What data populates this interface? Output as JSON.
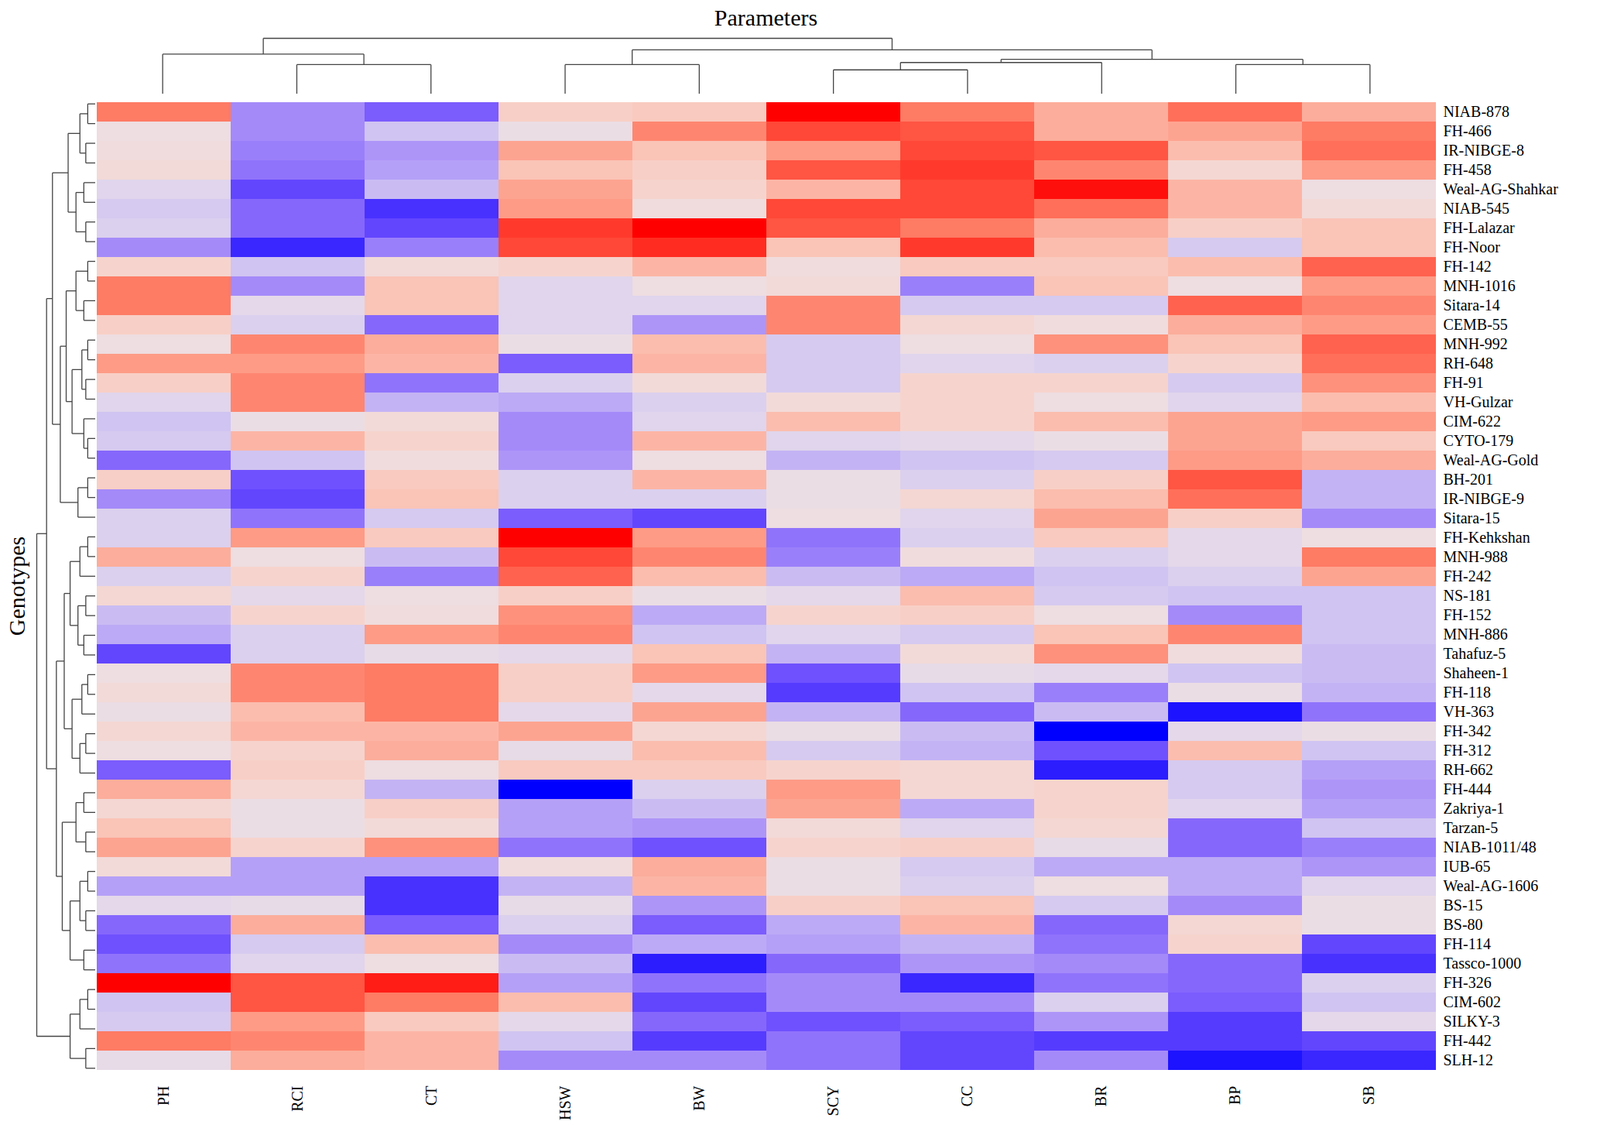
{
  "chart_data": {
    "type": "heatmap",
    "x_label": "Parameters",
    "y_label": "Genotypes",
    "columns": [
      "PH",
      "RCI",
      "CT",
      "HSW",
      "BW",
      "SCY",
      "CC",
      "BR",
      "BP",
      "SB"
    ],
    "rows": [
      "NIAB-878",
      "FH-466",
      "IR-NIBGE-8",
      "FH-458",
      "Weal-AG-Shahkar",
      "NIAB-545",
      "FH-Lalazar",
      "FH-Noor",
      "FH-142",
      "MNH-1016",
      "Sitara-14",
      "CEMB-55",
      "MNH-992",
      "RH-648",
      "FH-91",
      "VH-Gulzar",
      "CIM-622",
      "CYTO-179",
      "Weal-AG-Gold",
      "BH-201",
      "IR-NIBGE-9",
      "Sitara-15",
      "FH-Kehkshan",
      "MNH-988",
      "FH-242",
      "NS-181",
      "FH-152",
      "MNH-886",
      "Tahafuz-5",
      "Shaheen-1",
      "FH-118",
      "VH-363",
      "FH-342",
      "FH-312",
      "RH-662",
      "FH-444",
      "Zakriya-1",
      "Tarzan-5",
      "NIAB-1011/48",
      "IUB-65",
      "Weal-AG-1606",
      "BS-15",
      "BS-80",
      "FH-114",
      "Tassco-1000",
      "FH-326",
      "CIM-602",
      "SILKY-3",
      "FH-442",
      "SLH-12"
    ],
    "values": [
      [
        1.6,
        -1.2,
        -1.6,
        0.6,
        0.7,
        2.5,
        1.6,
        1.1,
        1.7,
        1.1
      ],
      [
        0.1,
        -1.2,
        -0.6,
        0.0,
        1.5,
        2.0,
        1.9,
        1.1,
        1.2,
        1.6
      ],
      [
        0.2,
        -1.3,
        -1.1,
        1.2,
        0.8,
        1.3,
        2.0,
        1.9,
        0.9,
        1.7
      ],
      [
        0.3,
        -1.4,
        -1.0,
        0.8,
        0.6,
        1.9,
        2.1,
        1.5,
        0.4,
        1.3
      ],
      [
        -0.3,
        -1.8,
        -0.7,
        1.2,
        0.5,
        1.0,
        2.0,
        2.4,
        1.0,
        0.1
      ],
      [
        -0.5,
        -1.5,
        -2.0,
        1.3,
        0.2,
        2.0,
        2.0,
        1.7,
        1.0,
        0.3
      ],
      [
        -0.4,
        -1.5,
        -1.8,
        2.1,
        2.5,
        1.9,
        1.6,
        1.1,
        0.6,
        0.8
      ],
      [
        -1.2,
        -2.1,
        -1.3,
        2.0,
        2.2,
        0.8,
        2.1,
        0.9,
        -0.5,
        0.8
      ],
      [
        0.5,
        -0.6,
        0.3,
        0.5,
        1.0,
        0.2,
        0.7,
        0.7,
        0.9,
        1.8
      ],
      [
        1.6,
        -1.2,
        0.8,
        -0.3,
        0.1,
        0.3,
        -1.3,
        0.8,
        0.1,
        1.3
      ],
      [
        1.6,
        -0.2,
        0.8,
        -0.3,
        -0.3,
        1.5,
        -0.5,
        -0.5,
        1.8,
        1.5
      ],
      [
        0.6,
        -0.4,
        -1.5,
        -0.3,
        -1.1,
        1.5,
        0.4,
        0.2,
        1.1,
        1.3
      ],
      [
        0.1,
        1.5,
        1.1,
        0.0,
        0.9,
        -0.5,
        0.1,
        1.4,
        0.8,
        1.8
      ],
      [
        1.3,
        1.3,
        1.0,
        -1.6,
        1.0,
        -0.5,
        -0.3,
        -0.4,
        0.5,
        1.7
      ],
      [
        0.6,
        1.5,
        -1.4,
        -0.4,
        0.3,
        -0.5,
        0.5,
        0.5,
        -0.5,
        1.4
      ],
      [
        -0.3,
        1.5,
        -0.8,
        -0.9,
        -0.4,
        0.3,
        0.5,
        0.1,
        -0.3,
        0.9
      ],
      [
        -0.6,
        0.0,
        0.3,
        -1.2,
        -0.3,
        0.9,
        0.5,
        0.9,
        1.2,
        1.3
      ],
      [
        -0.5,
        1.0,
        0.5,
        -1.2,
        1.0,
        -0.3,
        -0.2,
        0.0,
        1.2,
        0.7
      ],
      [
        -1.5,
        -0.6,
        0.2,
        -1.1,
        0.1,
        -0.8,
        -0.6,
        -0.5,
        1.3,
        1.1
      ],
      [
        0.6,
        -1.7,
        0.7,
        -0.4,
        1.0,
        0.0,
        -0.4,
        0.6,
        1.9,
        -0.8
      ],
      [
        -1.2,
        -1.8,
        0.8,
        -0.4,
        -0.4,
        0.0,
        0.4,
        0.9,
        1.7,
        -0.8
      ],
      [
        -0.4,
        -1.4,
        -0.5,
        -1.6,
        -1.8,
        0.1,
        -0.3,
        1.2,
        0.6,
        -1.2
      ],
      [
        -0.4,
        1.3,
        0.7,
        2.5,
        1.3,
        -1.4,
        -0.4,
        0.7,
        -0.2,
        0.1
      ],
      [
        1.1,
        0.1,
        -0.7,
        2.0,
        1.5,
        -1.3,
        0.2,
        -0.4,
        -0.2,
        1.6
      ],
      [
        -0.4,
        0.5,
        -1.3,
        1.8,
        0.9,
        -0.7,
        -0.9,
        -0.6,
        -0.4,
        1.2
      ],
      [
        0.4,
        -0.2,
        0.1,
        0.6,
        0.0,
        -0.2,
        0.9,
        -0.5,
        -0.6,
        -0.6
      ],
      [
        -0.7,
        0.5,
        0.2,
        1.4,
        -0.9,
        0.5,
        0.6,
        0.1,
        -1.2,
        -0.6
      ],
      [
        -0.9,
        -0.4,
        1.3,
        1.5,
        -0.6,
        -0.3,
        -0.5,
        0.8,
        1.5,
        -0.6
      ],
      [
        -1.8,
        -0.4,
        -0.1,
        -0.2,
        0.8,
        -0.8,
        0.3,
        1.4,
        0.2,
        -0.7
      ],
      [
        0.1,
        1.5,
        1.6,
        0.6,
        1.3,
        -1.7,
        -0.1,
        -0.2,
        -0.6,
        -0.7
      ],
      [
        0.3,
        1.5,
        1.6,
        0.6,
        -0.2,
        -1.9,
        -0.6,
        -1.3,
        0.0,
        -0.8
      ],
      [
        0.0,
        0.9,
        1.6,
        -0.2,
        1.2,
        -0.8,
        -1.5,
        -0.7,
        -2.3,
        -1.4
      ],
      [
        0.4,
        1.0,
        1.0,
        1.2,
        0.4,
        0.0,
        -0.7,
        -2.5,
        -0.2,
        0.0
      ],
      [
        0.1,
        0.5,
        1.1,
        -0.1,
        0.9,
        -0.5,
        -0.8,
        -1.7,
        0.9,
        -0.6
      ],
      [
        -1.6,
        0.6,
        0.1,
        0.7,
        0.7,
        0.5,
        0.4,
        -2.2,
        -0.5,
        -1.0
      ],
      [
        1.1,
        0.4,
        -0.8,
        -2.5,
        -0.4,
        1.3,
        0.4,
        0.5,
        -0.5,
        -1.1
      ],
      [
        0.4,
        0.0,
        0.6,
        -1.0,
        -0.7,
        1.2,
        -0.9,
        0.5,
        -0.3,
        -1.0
      ],
      [
        0.8,
        0.0,
        0.3,
        -1.0,
        -1.1,
        0.3,
        -0.3,
        0.4,
        -1.5,
        -0.6
      ],
      [
        1.2,
        0.5,
        1.4,
        -1.4,
        -1.7,
        0.5,
        0.6,
        -0.1,
        -1.5,
        -1.3
      ],
      [
        0.3,
        -1.0,
        -1.0,
        0.2,
        1.1,
        0.0,
        -0.5,
        -0.9,
        -0.9,
        -1.1
      ],
      [
        -1.0,
        -1.0,
        -2.0,
        -0.8,
        1.0,
        0.0,
        -0.4,
        0.1,
        -0.9,
        -0.3
      ],
      [
        -0.2,
        -0.1,
        -2.0,
        -0.1,
        -1.1,
        0.6,
        0.8,
        -0.5,
        -1.2,
        0.0
      ],
      [
        -1.5,
        1.1,
        -1.6,
        -0.4,
        -1.6,
        -0.9,
        1.0,
        -1.5,
        0.4,
        0.0
      ],
      [
        -1.7,
        -0.5,
        0.9,
        -1.2,
        -0.9,
        -1.0,
        -0.8,
        -1.4,
        0.5,
        -1.8
      ],
      [
        -1.4,
        -0.3,
        0.1,
        -0.7,
        -2.2,
        -1.5,
        -1.1,
        -1.2,
        -1.5,
        -2.0
      ],
      [
        2.5,
        1.9,
        2.3,
        -1.0,
        -1.4,
        -1.2,
        -2.1,
        -1.4,
        -1.5,
        -0.4
      ],
      [
        -0.6,
        1.9,
        1.6,
        0.9,
        -1.8,
        -1.2,
        -1.2,
        -0.4,
        -1.6,
        -0.6
      ],
      [
        -0.5,
        1.3,
        0.7,
        -0.2,
        -1.5,
        -1.7,
        -1.6,
        -1.1,
        -1.9,
        -0.2
      ],
      [
        1.6,
        1.5,
        1.0,
        -0.6,
        -1.9,
        -1.4,
        -1.8,
        -1.9,
        -1.9,
        -1.8
      ],
      [
        -0.1,
        1.1,
        1.0,
        -1.2,
        -1.2,
        -1.4,
        -1.8,
        -1.2,
        -2.3,
        -2.1
      ]
    ],
    "zlim": [
      -2.5,
      2.5
    ],
    "column_dendrogram": [
      53,
      [
        38,
        "PH",
        [
          28,
          "RCI",
          "CT"
        ]
      ],
      [
        42,
        [
          28,
          "HSW",
          "BW"
        ],
        [
          33,
          [
            30,
            [
              23,
              "SCY",
              "CC"
            ],
            "BR"
          ],
          [
            28,
            "BP",
            "SB"
          ]
        ]
      ]
    ],
    "row_dendrogram": [
      60,
      [
        50,
        [
          44,
          [
            28,
            [
              16,
              [
                8,
                "NIAB-878",
                "FH-466"
              ],
              [
                10,
                "IR-NIBGE-8",
                "FH-458"
              ]
            ],
            [
              20,
              [
                12,
                "Weal-AG-Shahkar",
                "NIAB-545"
              ],
              [
                10,
                "FH-Lalazar",
                "FH-Noor"
              ]
            ]
          ],
          [
            36,
            [
              30,
              [
                20,
                [
                  8,
                  "FH-142",
                  "MNH-1016"
                ],
                [
                  12,
                  "Sitara-14",
                  "CEMB-55"
                ]
              ],
              [
                24,
                [
                  14,
                  [
                    8,
                    "MNH-992",
                    "RH-648"
                  ],
                  [
                    10,
                    "FH-91",
                    "VH-Gulzar"
                  ]
                ],
                [
                  12,
                  "CIM-622",
                  [
                    8,
                    "CYTO-179",
                    "Weal-AG-Gold"
                  ]
                ]
              ]
            ],
            [
              18,
              [
                8,
                "BH-201",
                "IR-NIBGE-9"
              ],
              "Sitara-15"
            ]
          ]
        ],
        [
          40,
          [
            32,
            [
              26,
              [
                16,
                [
                  8,
                  "FH-Kehkshan",
                  "MNH-988"
                ],
                "FH-242"
              ],
              [
                18,
                [
                  10,
                  "NS-181",
                  "FH-152"
                ],
                [
                  12,
                  "MNH-886",
                  "Tahafuz-5"
                ]
              ]
            ],
            [
              24,
              [
                14,
                [
                  8,
                  "Shaheen-1",
                  "FH-118"
                ],
                "VH-363"
              ],
              [
                16,
                [
                  10,
                  "FH-342",
                  "FH-312"
                ],
                "RH-662"
              ]
            ]
          ],
          [
            34,
            [
              20,
              [
                12,
                "FH-444",
                "Zakriya-1"
              ],
              [
                10,
                "Tarzan-5",
                "NIAB-1011/48"
              ]
            ],
            [
              26,
              [
                16,
                [
                  8,
                  "IUB-65",
                  "Weal-AG-1606"
                ],
                [
                  10,
                  "BS-15",
                  "BS-80"
                ]
              ],
              [
                12,
                "FH-114",
                "Tassco-1000"
              ]
            ]
          ]
        ]
      ],
      [
        26,
        [
          16,
          [
            8,
            "FH-326",
            "CIM-602"
          ],
          "SILKY-3"
        ],
        [
          10,
          "FH-442",
          "SLH-12"
        ]
      ]
    ]
  }
}
